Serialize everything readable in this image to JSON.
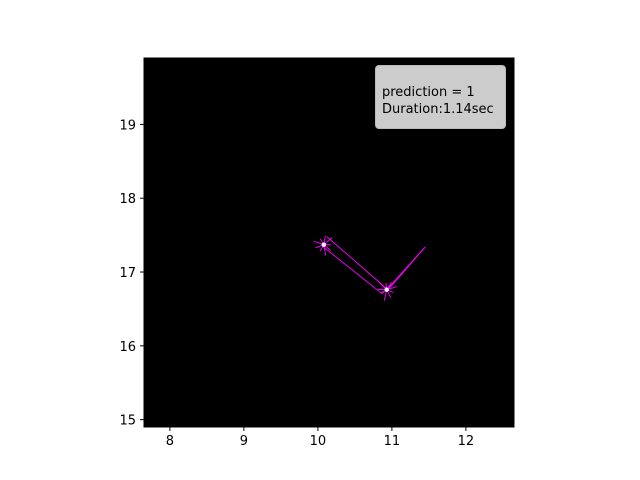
{
  "chart_data": {
    "type": "line",
    "background": "#000000",
    "stroke_color": "#ff00ff",
    "highlight_color": "#ffffff",
    "xlim": [
      7.65,
      12.65
    ],
    "ylim": [
      14.9,
      19.9
    ],
    "xticks": [
      8,
      9,
      10,
      11,
      12
    ],
    "yticks": [
      15,
      16,
      17,
      18,
      19
    ],
    "grid": false,
    "annotation": {
      "line1": "prediction = 1",
      "line2": "Duration:1.14sec",
      "placement": "top-right"
    },
    "series": [
      {
        "x": [
          10.12,
          10.9,
          10.95,
          11.45
        ],
        "y": [
          17.48,
          16.8,
          16.76,
          17.34
        ]
      },
      {
        "x": [
          10.05,
          10.85,
          10.92,
          11.44
        ],
        "y": [
          17.36,
          16.72,
          16.75,
          17.33
        ]
      }
    ],
    "clusters": [
      {
        "x": 10.08,
        "y": 17.37
      },
      {
        "x": 10.93,
        "y": 16.76
      }
    ]
  }
}
